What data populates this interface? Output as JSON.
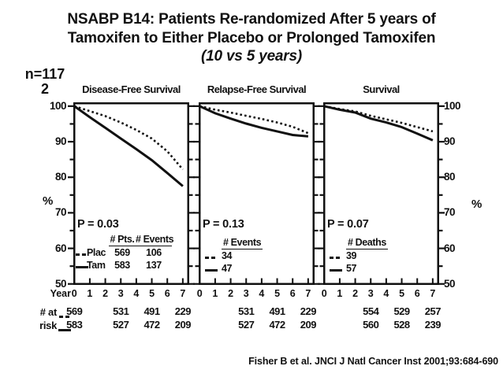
{
  "slide": {
    "title_line1": "NSABP B14: Patients Re-randomized After 5 years of",
    "title_line2": "Tamoxifen to Either Placebo or Prolonged Tamoxifen",
    "title_line3": "(10 vs 5 years)",
    "n_label_line1": "n=117",
    "n_label_line2": "2",
    "citation": "Fisher B et al. JNCI J Natl Cancer Inst 2001;93:684-690"
  },
  "colors": {
    "ink": "#111111",
    "background": "#ffffff"
  },
  "axes": {
    "y_ticks": [
      100,
      90,
      80,
      70,
      60,
      50
    ],
    "y_minor_step": 5,
    "y_unit_left": "%",
    "y_unit_right": "%",
    "x_label": "Year",
    "x_ticks": [
      0,
      1,
      2,
      3,
      4,
      5,
      6,
      7
    ],
    "ylim": [
      50,
      100
    ]
  },
  "at_risk_table": {
    "row1_label": "# at",
    "row2_label": "risk"
  },
  "chart_data": [
    {
      "type": "line",
      "title": "Disease-Free Survival",
      "p_value": "P = 0.03",
      "x": [
        0,
        1,
        2,
        3,
        4,
        5,
        6,
        7
      ],
      "ylim": [
        50,
        100
      ],
      "series": [
        {
          "name": "Placebo",
          "style": "dotted",
          "values": [
            100,
            98.6,
            97.2,
            95.4,
            93.3,
            90.9,
            87.3,
            82.2
          ]
        },
        {
          "name": "Tamoxifen",
          "style": "solid",
          "values": [
            100,
            96.9,
            93.9,
            90.9,
            87.9,
            84.8,
            81.2,
            77.5
          ]
        }
      ],
      "legend": {
        "headers": [
          "# Pts.",
          "# Events"
        ],
        "rows": [
          {
            "marker": "dotted",
            "label": "Plac",
            "values": [
              "569",
              "106"
            ]
          },
          {
            "marker": "solid",
            "label": "Tam",
            "values": [
              "583",
              "137"
            ]
          }
        ]
      },
      "at_risk": {
        "years": [
          0,
          3,
          5,
          7
        ],
        "dotted": [
          "569",
          "531",
          "491",
          "229"
        ],
        "solid": [
          "583",
          "527",
          "472",
          "209"
        ]
      }
    },
    {
      "type": "line",
      "title": "Relapse-Free Survival",
      "p_value": "P = 0.13",
      "x": [
        0,
        1,
        2,
        3,
        4,
        5,
        6,
        7
      ],
      "ylim": [
        50,
        100
      ],
      "series": [
        {
          "name": "Placebo",
          "style": "dotted",
          "values": [
            100,
            99.0,
            98.2,
            97.3,
            96.4,
            95.4,
            94.2,
            92.4
          ]
        },
        {
          "name": "Tamoxifen",
          "style": "solid",
          "values": [
            100,
            98.0,
            96.5,
            95.1,
            93.9,
            92.9,
            91.9,
            91.5
          ]
        }
      ],
      "legend": {
        "headers": [
          "# Events"
        ],
        "rows": [
          {
            "marker": "dotted",
            "label": "",
            "values": [
              "34"
            ]
          },
          {
            "marker": "solid",
            "label": "",
            "values": [
              "47"
            ]
          }
        ]
      },
      "at_risk": {
        "years": [
          3,
          5,
          7
        ],
        "dotted": [
          "531",
          "491",
          "229"
        ],
        "solid": [
          "527",
          "472",
          "209"
        ]
      }
    },
    {
      "type": "line",
      "title": "Survival",
      "p_value": "P = 0.07",
      "x": [
        0,
        1,
        2,
        3,
        4,
        5,
        6,
        7
      ],
      "ylim": [
        50,
        100
      ],
      "series": [
        {
          "name": "Placebo",
          "style": "dotted",
          "values": [
            100,
            99.2,
            98.5,
            97.3,
            96.3,
            95.3,
            94.1,
            92.9
          ]
        },
        {
          "name": "Tamoxifen",
          "style": "solid",
          "values": [
            100,
            99.0,
            98.2,
            96.5,
            95.4,
            94.1,
            92.3,
            90.4
          ]
        }
      ],
      "legend": {
        "headers": [
          "# Deaths"
        ],
        "rows": [
          {
            "marker": "dotted",
            "label": "",
            "values": [
              "39"
            ]
          },
          {
            "marker": "solid",
            "label": "",
            "values": [
              "57"
            ]
          }
        ]
      },
      "at_risk": {
        "years": [
          3,
          5,
          7
        ],
        "dotted": [
          "554",
          "529",
          "257"
        ],
        "solid": [
          "560",
          "528",
          "239"
        ]
      }
    }
  ]
}
